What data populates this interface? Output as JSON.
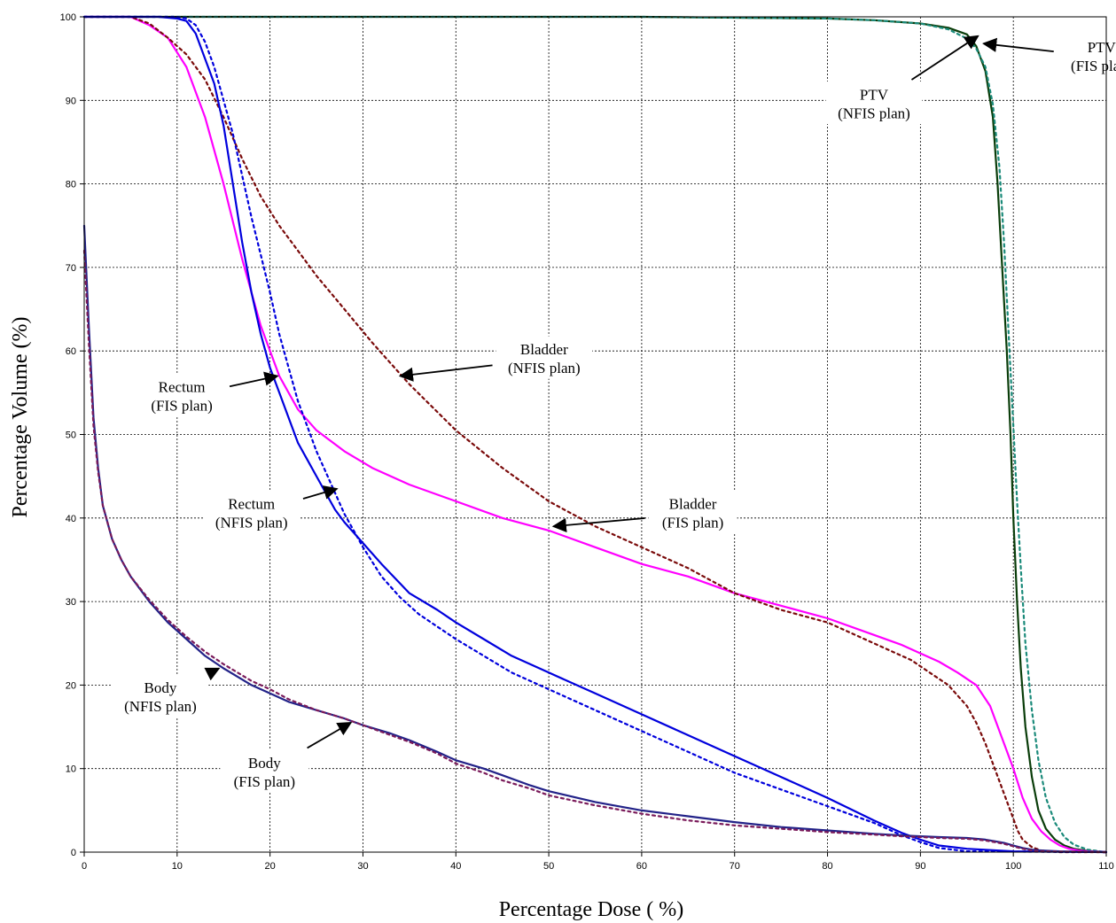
{
  "chart_data": {
    "type": "line",
    "title": "",
    "xlabel": "Percentage Dose ( %)",
    "ylabel": "Percentage Volume (%)",
    "xlim": [
      0,
      110
    ],
    "ylim": [
      0,
      100
    ],
    "xticks": [
      0,
      10,
      20,
      30,
      40,
      50,
      60,
      70,
      80,
      90,
      100,
      110
    ],
    "yticks": [
      0,
      10,
      20,
      30,
      40,
      50,
      60,
      70,
      80,
      90,
      100
    ],
    "grid": true,
    "legend": "none",
    "series": [
      {
        "name": "PTV (FIS plan)",
        "color": "#0a3d0a",
        "dash": "solid",
        "x": [
          0,
          60,
          80,
          85,
          90,
          93,
          95,
          96,
          97,
          97.8,
          98.3,
          98.8,
          99.3,
          99.7,
          100,
          100.4,
          100.8,
          101.3,
          102,
          102.7,
          103.5,
          104.5,
          105.5,
          106.5,
          108,
          110
        ],
        "y": [
          100,
          100,
          99.8,
          99.6,
          99.2,
          98.7,
          97.9,
          96.5,
          93.5,
          88,
          80,
          70,
          60,
          50,
          40,
          30,
          22,
          15,
          9,
          5,
          2.8,
          1.5,
          0.8,
          0.4,
          0.15,
          0
        ]
      },
      {
        "name": "PTV (NFIS plan)",
        "color": "#1a8a7a",
        "dash": "dotted",
        "x": [
          0,
          60,
          80,
          85,
          90,
          93,
          95,
          96,
          97,
          97.8,
          98.5,
          99,
          99.5,
          100,
          100.4,
          100.8,
          101.3,
          102,
          102.7,
          103.5,
          104.5,
          105.5,
          106.5,
          108,
          110
        ],
        "y": [
          100,
          100,
          99.8,
          99.6,
          99.2,
          98.5,
          97.4,
          96.2,
          94,
          89.5,
          82,
          73,
          62,
          51,
          42,
          34,
          25,
          17,
          11,
          6.5,
          3.5,
          1.8,
          0.9,
          0.3,
          0
        ]
      },
      {
        "name": "Bladder (FIS plan)",
        "color": "#ff00ff",
        "dash": "solid",
        "x": [
          0,
          5,
          7,
          9,
          11,
          13,
          15,
          17,
          19,
          21,
          23,
          25,
          28,
          31,
          35,
          40,
          45,
          50,
          55,
          60,
          65,
          70,
          75,
          80,
          85,
          88,
          90,
          92,
          94,
          96,
          97.5,
          99,
          100,
          101,
          102,
          103,
          104,
          105,
          106,
          107,
          108,
          109,
          110
        ],
        "y": [
          100,
          100,
          99,
          97.5,
          94,
          88,
          80,
          71,
          63,
          57,
          53,
          50.5,
          48,
          46,
          44,
          42,
          40,
          38.5,
          36.5,
          34.5,
          33,
          31,
          29.5,
          28,
          26,
          24.8,
          23.8,
          22.8,
          21.5,
          20,
          17.5,
          13,
          10,
          6.5,
          4,
          2.5,
          1.5,
          0.8,
          0.4,
          0.2,
          0.1,
          0.05,
          0
        ]
      },
      {
        "name": "Bladder (NFIS plan)",
        "color": "#7a0a0a",
        "dash": "dotted",
        "x": [
          0,
          5,
          7,
          9,
          11,
          13,
          15,
          17,
          19,
          21,
          23,
          25,
          28,
          31,
          35,
          40,
          45,
          50,
          55,
          60,
          65,
          70,
          75,
          80,
          83,
          85,
          87,
          89,
          91,
          93,
          95,
          96,
          97,
          98,
          99,
          100,
          100.5,
          101,
          102,
          103,
          104,
          105,
          110
        ],
        "y": [
          100,
          100,
          99.2,
          97.5,
          95.5,
          92.5,
          88,
          83,
          78.5,
          75,
          72,
          69,
          65,
          61,
          56,
          50.5,
          46,
          42,
          39,
          36.5,
          34,
          31,
          29,
          27.5,
          26,
          25,
          24,
          23,
          21.5,
          20,
          17.5,
          15.5,
          13,
          10,
          7,
          4,
          2.5,
          1.5,
          0.6,
          0.2,
          0.1,
          0,
          0
        ]
      },
      {
        "name": "Rectum (FIS plan)",
        "color": "#0000dd",
        "dash": "solid",
        "x": [
          0,
          8,
          10,
          11,
          12,
          13,
          14,
          15,
          16,
          17,
          18,
          19,
          20,
          21,
          22,
          23,
          24,
          25,
          26,
          27,
          28,
          30,
          32,
          35,
          38,
          40,
          43,
          46,
          50,
          55,
          60,
          65,
          70,
          75,
          80,
          85,
          88,
          90,
          92,
          95,
          100,
          110
        ],
        "y": [
          100,
          100,
          99.8,
          99.5,
          98,
          95,
          92,
          87,
          80,
          73,
          67,
          62,
          58,
          55,
          52,
          49,
          47,
          45,
          43,
          41,
          39.5,
          37,
          34.5,
          31,
          29,
          27.5,
          25.5,
          23.5,
          21.5,
          19,
          16.5,
          14,
          11.5,
          9,
          6.5,
          3.8,
          2.3,
          1.5,
          0.8,
          0.4,
          0.1,
          0
        ]
      },
      {
        "name": "Rectum (NFIS plan)",
        "color": "#0000dd",
        "dash": "dotted",
        "x": [
          0,
          10,
          11,
          12,
          13,
          14,
          15,
          16,
          17,
          18,
          19,
          20,
          21,
          22,
          23,
          24,
          25,
          26,
          27,
          28,
          29,
          30,
          32,
          34,
          36,
          38,
          40,
          43,
          46,
          50,
          55,
          60,
          65,
          70,
          75,
          80,
          85,
          88,
          90,
          92,
          95,
          110
        ],
        "y": [
          100,
          100,
          99.8,
          99,
          97,
          94,
          90,
          86,
          81,
          76,
          71.5,
          67,
          62,
          58,
          54,
          51,
          48,
          45.5,
          43,
          40.5,
          38.5,
          36.5,
          33,
          30.5,
          28.5,
          27,
          25.5,
          23.5,
          21.5,
          19.5,
          17,
          14.5,
          12,
          9.5,
          7.5,
          5.5,
          3.5,
          2,
          1.2,
          0.5,
          0.1,
          0
        ]
      },
      {
        "name": "Body (FIS plan)",
        "color": "#222288",
        "dash": "solid",
        "x": [
          0,
          0.5,
          1,
          1.5,
          2,
          3,
          4,
          5,
          7,
          9,
          11,
          13,
          15,
          18,
          20,
          22,
          25,
          28,
          30,
          33,
          35,
          38,
          40,
          43,
          45,
          48,
          50,
          55,
          60,
          65,
          70,
          75,
          80,
          85,
          88,
          90,
          92,
          95,
          97,
          98,
          99,
          100,
          101,
          102,
          103,
          105,
          110
        ],
        "y": [
          75,
          63,
          52,
          46,
          41.5,
          37.5,
          35,
          33,
          30,
          27.5,
          25.5,
          23.5,
          22,
          20,
          19,
          18,
          17,
          16,
          15.2,
          14.2,
          13.4,
          12,
          11,
          10,
          9.2,
          8,
          7.3,
          6,
          5,
          4.3,
          3.6,
          3,
          2.6,
          2.2,
          2,
          1.9,
          1.8,
          1.7,
          1.5,
          1.3,
          1.1,
          0.8,
          0.5,
          0.3,
          0.2,
          0.1,
          0
        ]
      },
      {
        "name": "Body (NFIS plan)",
        "color": "#7a1a5a",
        "dash": "dotted",
        "x": [
          0,
          0.5,
          1,
          1.5,
          2,
          3,
          4,
          5,
          7,
          9,
          11,
          13,
          15,
          18,
          20,
          22,
          25,
          28,
          30,
          33,
          35,
          38,
          40,
          43,
          45,
          48,
          50,
          55,
          60,
          65,
          70,
          75,
          80,
          85,
          88,
          90,
          92,
          95,
          97,
          98,
          99,
          100,
          101,
          102,
          103,
          105,
          110
        ],
        "y": [
          72,
          61,
          51,
          45.5,
          41.5,
          37.5,
          35,
          33,
          30.2,
          27.8,
          25.8,
          24,
          22.5,
          20.5,
          19.5,
          18.3,
          17,
          16,
          15.2,
          14,
          13.2,
          11.8,
          10.6,
          9.5,
          8.6,
          7.6,
          6.8,
          5.6,
          4.6,
          3.8,
          3.2,
          2.8,
          2.4,
          2.1,
          1.9,
          1.8,
          1.7,
          1.6,
          1.4,
          1.2,
          1.0,
          0.7,
          0.4,
          0.2,
          0.1,
          0.05,
          0
        ]
      }
    ],
    "annotations": [
      {
        "key": "ptv-fis",
        "lines": [
          "PTV",
          "(FIS plan)"
        ],
        "at": [
          109.5,
          95.2
        ],
        "arrow_to": [
          96.8,
          96.8
        ]
      },
      {
        "key": "ptv-nfis",
        "lines": [
          "PTV",
          "(NFIS plan)"
        ],
        "at": [
          85,
          89.5
        ],
        "arrow_to": [
          96.2,
          97.7
        ]
      },
      {
        "key": "bladder-nfis",
        "lines": [
          "Bladder",
          "(NFIS plan)"
        ],
        "at": [
          49.5,
          59
        ],
        "arrow_to": [
          34,
          57
        ]
      },
      {
        "key": "bladder-fis",
        "lines": [
          "Bladder",
          "(FIS plan)"
        ],
        "at": [
          65.5,
          40.5
        ],
        "arrow_to": [
          50.5,
          39
        ]
      },
      {
        "key": "rectum-fis",
        "lines": [
          "Rectum",
          "(FIS plan)"
        ],
        "at": [
          10.5,
          54.5
        ],
        "arrow_to": [
          20.8,
          57
        ]
      },
      {
        "key": "rectum-nfis",
        "lines": [
          "Rectum",
          "(NFIS plan)"
        ],
        "at": [
          18,
          40.5
        ],
        "arrow_to": [
          27.2,
          43.5
        ]
      },
      {
        "key": "body-nfis",
        "lines": [
          "Body",
          "(NFIS plan)"
        ],
        "at": [
          8.2,
          18.5
        ],
        "arrow_to": [
          14.5,
          22
        ]
      },
      {
        "key": "body-fis",
        "lines": [
          "Body",
          "(FIS plan)"
        ],
        "at": [
          19.4,
          9.5
        ],
        "arrow_to": [
          28.7,
          15.5
        ]
      }
    ]
  }
}
